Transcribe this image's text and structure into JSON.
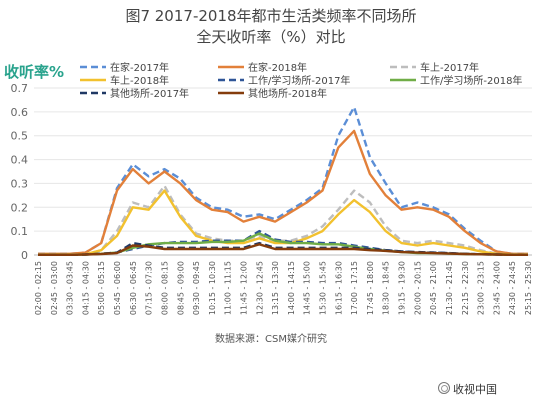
{
  "header": {
    "title_line1": "图7  2017-2018年都市生活类频率不同场所",
    "title_line2": "全天收听率（%）对比"
  },
  "footer": {
    "source": "数据来源：CSM媒介研究",
    "watermark": "收视中国"
  },
  "chart_data": {
    "type": "line",
    "title": "图7  2017-2018年都市生活类频率不同场所 全天收听率（%）对比",
    "ylabel": "收听率%",
    "xlabel": "",
    "ylim": [
      0,
      0.7
    ],
    "yticks": [
      0,
      0.1,
      0.2,
      0.3,
      0.4,
      0.5,
      0.6,
      0.7
    ],
    "grid": true,
    "legend_position": "top",
    "x": [
      "02:00 - 02:15",
      "02:45 - 03:00",
      "03:30 - 03:45",
      "04:15 - 04:30",
      "05:00 - 05:15",
      "05:45 - 06:00",
      "06:30 - 06:45",
      "07:15 - 07:30",
      "08:00 - 08:15",
      "08:45 - 09:00",
      "09:30 - 09:45",
      "10:15 - 10:30",
      "11:00 - 11:15",
      "11:45 - 12:00",
      "12:30 - 12:45",
      "13:15 - 13:30",
      "14:00 - 14:15",
      "14:45 - 15:00",
      "15:30 - 15:45",
      "16:15 - 16:30",
      "17:00 - 17:15",
      "17:45 - 18:00",
      "18:30 - 18:45",
      "19:15 - 19:30",
      "20:00 - 20:15",
      "20:45 - 21:00",
      "21:30 - 21:45",
      "22:15 - 22:30",
      "23:00 - 23:15",
      "23:45 - 24:00",
      "24:30 - 24:45",
      "25:15 - 25:30"
    ],
    "series": [
      {
        "name": "在家-2017年",
        "color": "#5b8ed6",
        "dash": "dash",
        "values": [
          0.005,
          0.005,
          0.005,
          0.01,
          0.05,
          0.28,
          0.38,
          0.33,
          0.36,
          0.32,
          0.24,
          0.2,
          0.19,
          0.16,
          0.17,
          0.15,
          0.19,
          0.23,
          0.28,
          0.5,
          0.62,
          0.41,
          0.3,
          0.2,
          0.22,
          0.2,
          0.17,
          0.11,
          0.06,
          0.015,
          0.005,
          0.005
        ]
      },
      {
        "name": "在家-2018年",
        "color": "#e2803a",
        "dash": "solid",
        "values": [
          0.005,
          0.005,
          0.005,
          0.01,
          0.05,
          0.27,
          0.36,
          0.3,
          0.35,
          0.3,
          0.23,
          0.19,
          0.18,
          0.14,
          0.16,
          0.14,
          0.18,
          0.22,
          0.27,
          0.45,
          0.52,
          0.34,
          0.25,
          0.19,
          0.2,
          0.19,
          0.16,
          0.1,
          0.05,
          0.015,
          0.005,
          0.005
        ]
      },
      {
        "name": "车上-2017年",
        "color": "#bdbdbd",
        "dash": "dash",
        "values": [
          0.002,
          0.002,
          0.002,
          0.003,
          0.02,
          0.1,
          0.22,
          0.2,
          0.29,
          0.17,
          0.09,
          0.07,
          0.06,
          0.06,
          0.08,
          0.06,
          0.06,
          0.08,
          0.12,
          0.19,
          0.27,
          0.22,
          0.12,
          0.06,
          0.05,
          0.06,
          0.05,
          0.04,
          0.02,
          0.006,
          0.002,
          0.002
        ]
      },
      {
        "name": "车上-2018年",
        "color": "#f2c12e",
        "dash": "solid",
        "values": [
          0.002,
          0.002,
          0.002,
          0.003,
          0.02,
          0.08,
          0.2,
          0.19,
          0.27,
          0.16,
          0.08,
          0.06,
          0.05,
          0.05,
          0.07,
          0.05,
          0.05,
          0.07,
          0.1,
          0.17,
          0.23,
          0.18,
          0.1,
          0.05,
          0.04,
          0.05,
          0.04,
          0.03,
          0.015,
          0.005,
          0.002,
          0.002
        ]
      },
      {
        "name": "工作/学习场所-2017年",
        "color": "#2f5597",
        "dash": "dash",
        "values": [
          0.001,
          0.001,
          0.001,
          0.002,
          0.005,
          0.01,
          0.025,
          0.04,
          0.05,
          0.055,
          0.055,
          0.06,
          0.06,
          0.06,
          0.1,
          0.065,
          0.055,
          0.055,
          0.05,
          0.05,
          0.04,
          0.03,
          0.02,
          0.015,
          0.01,
          0.01,
          0.008,
          0.005,
          0.003,
          0.002,
          0.001,
          0.001
        ]
      },
      {
        "name": "工作/学习场所-2018年",
        "color": "#70ad47",
        "dash": "solid",
        "values": [
          0.001,
          0.001,
          0.001,
          0.002,
          0.005,
          0.01,
          0.03,
          0.045,
          0.05,
          0.05,
          0.05,
          0.055,
          0.055,
          0.06,
          0.09,
          0.06,
          0.05,
          0.05,
          0.045,
          0.045,
          0.035,
          0.025,
          0.018,
          0.012,
          0.008,
          0.008,
          0.006,
          0.004,
          0.003,
          0.002,
          0.001,
          0.001
        ]
      },
      {
        "name": "其他场所-2017年",
        "color": "#1f3864",
        "dash": "dash",
        "values": [
          0.001,
          0.001,
          0.001,
          0.002,
          0.005,
          0.01,
          0.05,
          0.04,
          0.03,
          0.03,
          0.03,
          0.03,
          0.03,
          0.03,
          0.05,
          0.03,
          0.03,
          0.03,
          0.03,
          0.03,
          0.03,
          0.025,
          0.02,
          0.015,
          0.012,
          0.01,
          0.008,
          0.005,
          0.003,
          0.002,
          0.001,
          0.001
        ]
      },
      {
        "name": "其他场所-2018年",
        "color": "#843c0c",
        "dash": "solid",
        "values": [
          0.001,
          0.001,
          0.001,
          0.002,
          0.004,
          0.008,
          0.04,
          0.035,
          0.025,
          0.025,
          0.025,
          0.025,
          0.025,
          0.025,
          0.045,
          0.025,
          0.025,
          0.025,
          0.025,
          0.025,
          0.025,
          0.02,
          0.017,
          0.012,
          0.01,
          0.008,
          0.006,
          0.004,
          0.003,
          0.002,
          0.001,
          0.001
        ]
      }
    ]
  }
}
